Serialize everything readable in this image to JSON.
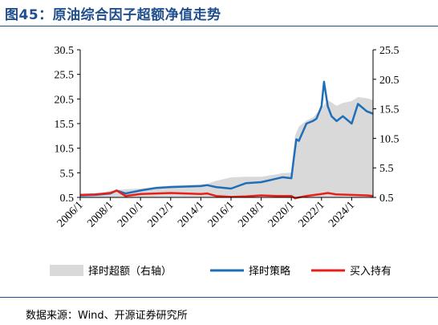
{
  "figure": {
    "title": "图45：原油综合因子超额净值走势",
    "source": "数据来源：Wind、开源证券研究所"
  },
  "chart_data": {
    "type": "line",
    "y_left": {
      "ticks": [
        "0.5",
        "5.5",
        "10.5",
        "15.5",
        "20.5",
        "25.5",
        "30.5"
      ],
      "range": [
        0.5,
        30.5
      ]
    },
    "y_right": {
      "ticks": [
        "0.5",
        "5.5",
        "10.5",
        "15.5",
        "20.5",
        "25.5"
      ],
      "range": [
        0.5,
        25.5
      ]
    },
    "x_ticks": [
      "2006/1",
      "2008/1",
      "2010/1",
      "2012/1",
      "2014/1",
      "2016/1",
      "2018/1",
      "2020/1",
      "2022/1",
      "2024/1"
    ],
    "x_range": [
      "2006/1",
      "2025/6"
    ],
    "legend_position": "bottom",
    "colors": {
      "excess": "#d9d9d9",
      "timing": "#1f6fb8",
      "buyhold": "#e8201c"
    },
    "series": [
      {
        "name": "择时超额（右轴）",
        "type": "area",
        "axis": "right",
        "x": [
          "2006/1",
          "2007/1",
          "2008/1",
          "2009/1",
          "2010/1",
          "2011/1",
          "2012/1",
          "2013/1",
          "2014/1",
          "2014/6",
          "2015/1",
          "2016/1",
          "2017/1",
          "2018/1",
          "2019/1",
          "2019/6",
          "2020/1",
          "2020/4",
          "2020/7",
          "2021/1",
          "2021/6",
          "2022/1",
          "2022/6",
          "2023/1",
          "2023/6",
          "2024/1",
          "2024/6",
          "2025/1",
          "2025/6"
        ],
        "values": [
          0.9,
          1.0,
          1.6,
          1.9,
          2.0,
          2.3,
          2.5,
          2.6,
          2.7,
          2.8,
          3.3,
          3.9,
          4.0,
          4.0,
          4.4,
          4.6,
          4.7,
          11.0,
          12.5,
          13.5,
          14.0,
          15.6,
          17.0,
          16.0,
          16.5,
          16.8,
          17.5,
          17.3,
          17.0
        ]
      },
      {
        "name": "择时策略",
        "type": "line",
        "axis": "left",
        "x": [
          "2006/1",
          "2007/1",
          "2008/1",
          "2008/6",
          "2009/1",
          "2010/1",
          "2011/1",
          "2012/1",
          "2013/1",
          "2014/1",
          "2014/6",
          "2015/1",
          "2016/1",
          "2017/1",
          "2018/1",
          "2019/1",
          "2019/6",
          "2020/1",
          "2020/3",
          "2020/5",
          "2020/7",
          "2021/1",
          "2021/6",
          "2021/9",
          "2022/1",
          "2022/3",
          "2022/6",
          "2022/9",
          "2023/1",
          "2023/6",
          "2024/1",
          "2024/6",
          "2025/1",
          "2025/6"
        ],
        "values": [
          0.9,
          1.0,
          1.3,
          1.9,
          1.3,
          1.9,
          2.4,
          2.6,
          2.7,
          2.8,
          3.0,
          2.6,
          2.3,
          3.4,
          3.6,
          4.3,
          4.6,
          4.4,
          8.5,
          12.3,
          12.0,
          15.5,
          16.0,
          16.5,
          19.0,
          24.0,
          19.0,
          17.0,
          16.0,
          17.0,
          15.5,
          19.5,
          18.0,
          17.5
        ]
      },
      {
        "name": "买入持有",
        "type": "line",
        "axis": "left",
        "x": [
          "2006/1",
          "2007/1",
          "2008/1",
          "2008/6",
          "2009/1",
          "2010/1",
          "2011/1",
          "2012/1",
          "2013/1",
          "2014/1",
          "2014/6",
          "2015/1",
          "2016/1",
          "2017/1",
          "2018/1",
          "2019/1",
          "2020/1",
          "2020/4",
          "2020/7",
          "2021/1",
          "2022/1",
          "2022/6",
          "2023/1",
          "2024/1",
          "2025/1",
          "2025/6"
        ],
        "values": [
          1.0,
          1.1,
          1.4,
          1.9,
          0.8,
          1.2,
          1.3,
          1.4,
          1.3,
          1.2,
          1.3,
          0.8,
          0.6,
          0.7,
          0.9,
          0.8,
          0.8,
          0.3,
          0.5,
          0.8,
          1.2,
          1.4,
          1.1,
          1.0,
          0.9,
          0.8
        ]
      }
    ]
  }
}
